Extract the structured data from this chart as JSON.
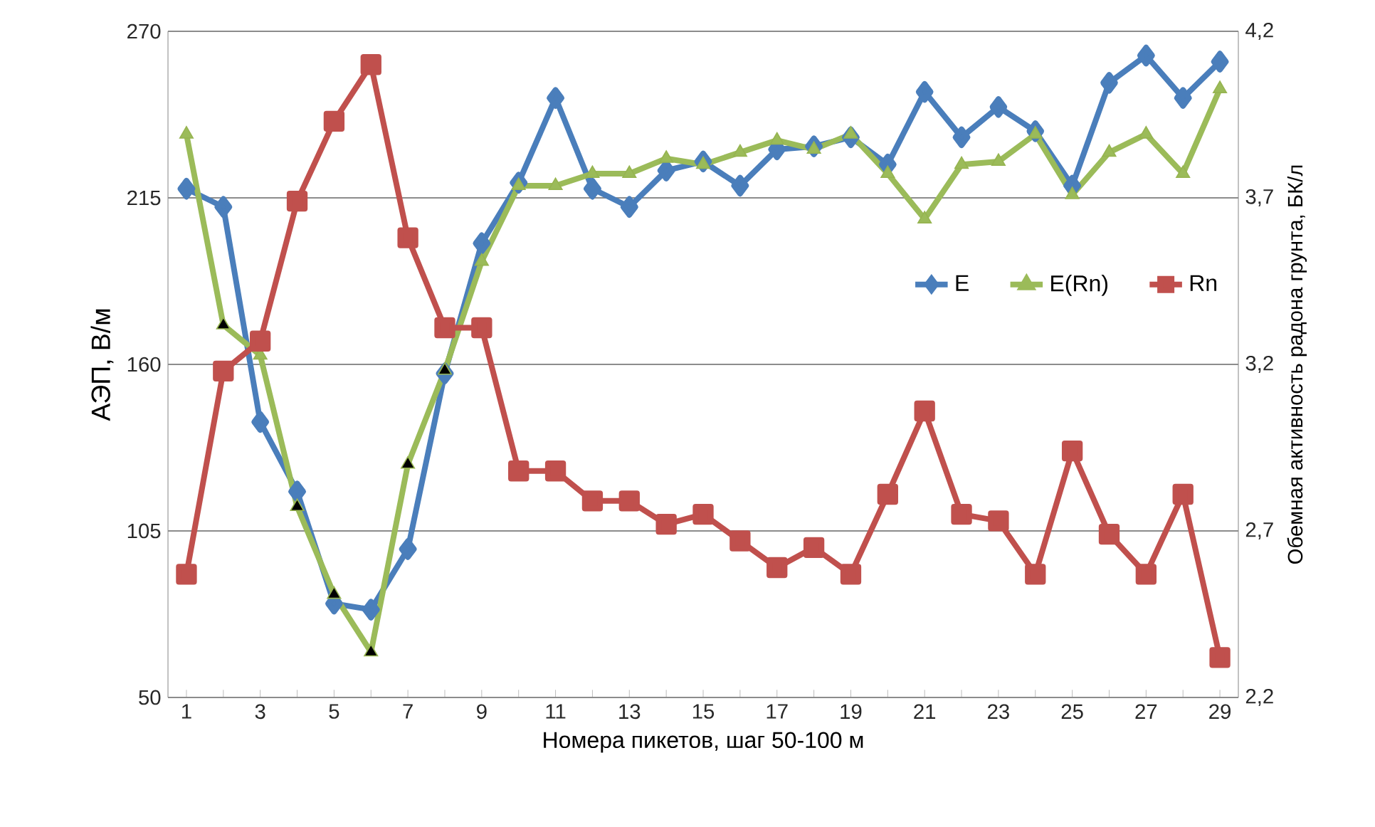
{
  "chart_data": {
    "type": "line",
    "xlabel": "Номера пикетов, шаг 50-100 м",
    "ylabel": "АЭП, В/м",
    "y2label": "Обемная активность радона грунта, БК/л",
    "categories": [
      "1",
      null,
      "3",
      null,
      "5",
      null,
      "7",
      null,
      "9",
      null,
      "11",
      null,
      "13",
      null,
      "15",
      null,
      "17",
      null,
      "19",
      null,
      "21",
      null,
      "23",
      null,
      "25",
      null,
      "27",
      null,
      "29"
    ],
    "ylim": [
      50,
      270
    ],
    "yticks": [
      50,
      105,
      160,
      215,
      270
    ],
    "y2lim": [
      2.2,
      4.2
    ],
    "y2ticks": [
      {
        "value": 2.2,
        "label": "2,2"
      },
      {
        "value": 2.7,
        "label": "2,7"
      },
      {
        "value": 3.2,
        "label": "3,2"
      },
      {
        "value": 3.7,
        "label": "3,7"
      },
      {
        "value": 4.2,
        "label": "4,2"
      }
    ],
    "grid": "y",
    "legend": "right",
    "series": [
      {
        "name": "E",
        "color": "#4a7ebb",
        "marker": "diamond",
        "values": [
          218,
          212,
          141,
          118,
          81,
          79,
          99,
          157,
          200,
          220,
          248,
          218,
          212,
          224,
          227,
          219,
          231,
          232,
          235,
          226,
          250,
          235,
          245,
          237,
          219,
          253,
          262,
          248,
          260
        ]
      },
      {
        "name": "E(Rn)",
        "color": "#9bbb59",
        "marker": "triangle",
        "colors": [
          "#9bbb59",
          "#000000",
          "#9bbb59",
          "#000000",
          "#000000",
          "#000000",
          "#000000",
          "#000000",
          "#9bbb59",
          "#9bbb59",
          "#9bbb59",
          "#9bbb59",
          "#9bbb59",
          "#9bbb59",
          "#9bbb59",
          "#9bbb59",
          "#9bbb59",
          "#9bbb59",
          "#9bbb59",
          "#9bbb59",
          "#9bbb59",
          "#9bbb59",
          "#9bbb59",
          "#9bbb59",
          "#9bbb59",
          "#9bbb59",
          "#9bbb59",
          "#9bbb59",
          "#9bbb59"
        ],
        "values": [
          236,
          173,
          163,
          113,
          84,
          65,
          127,
          158,
          194,
          219,
          219,
          223,
          223,
          228,
          226,
          230,
          234,
          231,
          236,
          223,
          208,
          226,
          227,
          236,
          216,
          230,
          236,
          223,
          251
        ]
      },
      {
        "name": "Rn",
        "color": "#c0504d",
        "marker": "square",
        "axis": "y2",
        "values": [
          2.57,
          3.18,
          3.27,
          3.69,
          3.93,
          4.1,
          3.58,
          3.31,
          3.31,
          2.88,
          2.88,
          2.79,
          2.79,
          2.72,
          2.75,
          2.67,
          2.59,
          2.65,
          2.57,
          2.81,
          3.06,
          2.75,
          2.73,
          2.57,
          2.94,
          2.69,
          2.57,
          2.81,
          2.32
        ]
      }
    ]
  }
}
